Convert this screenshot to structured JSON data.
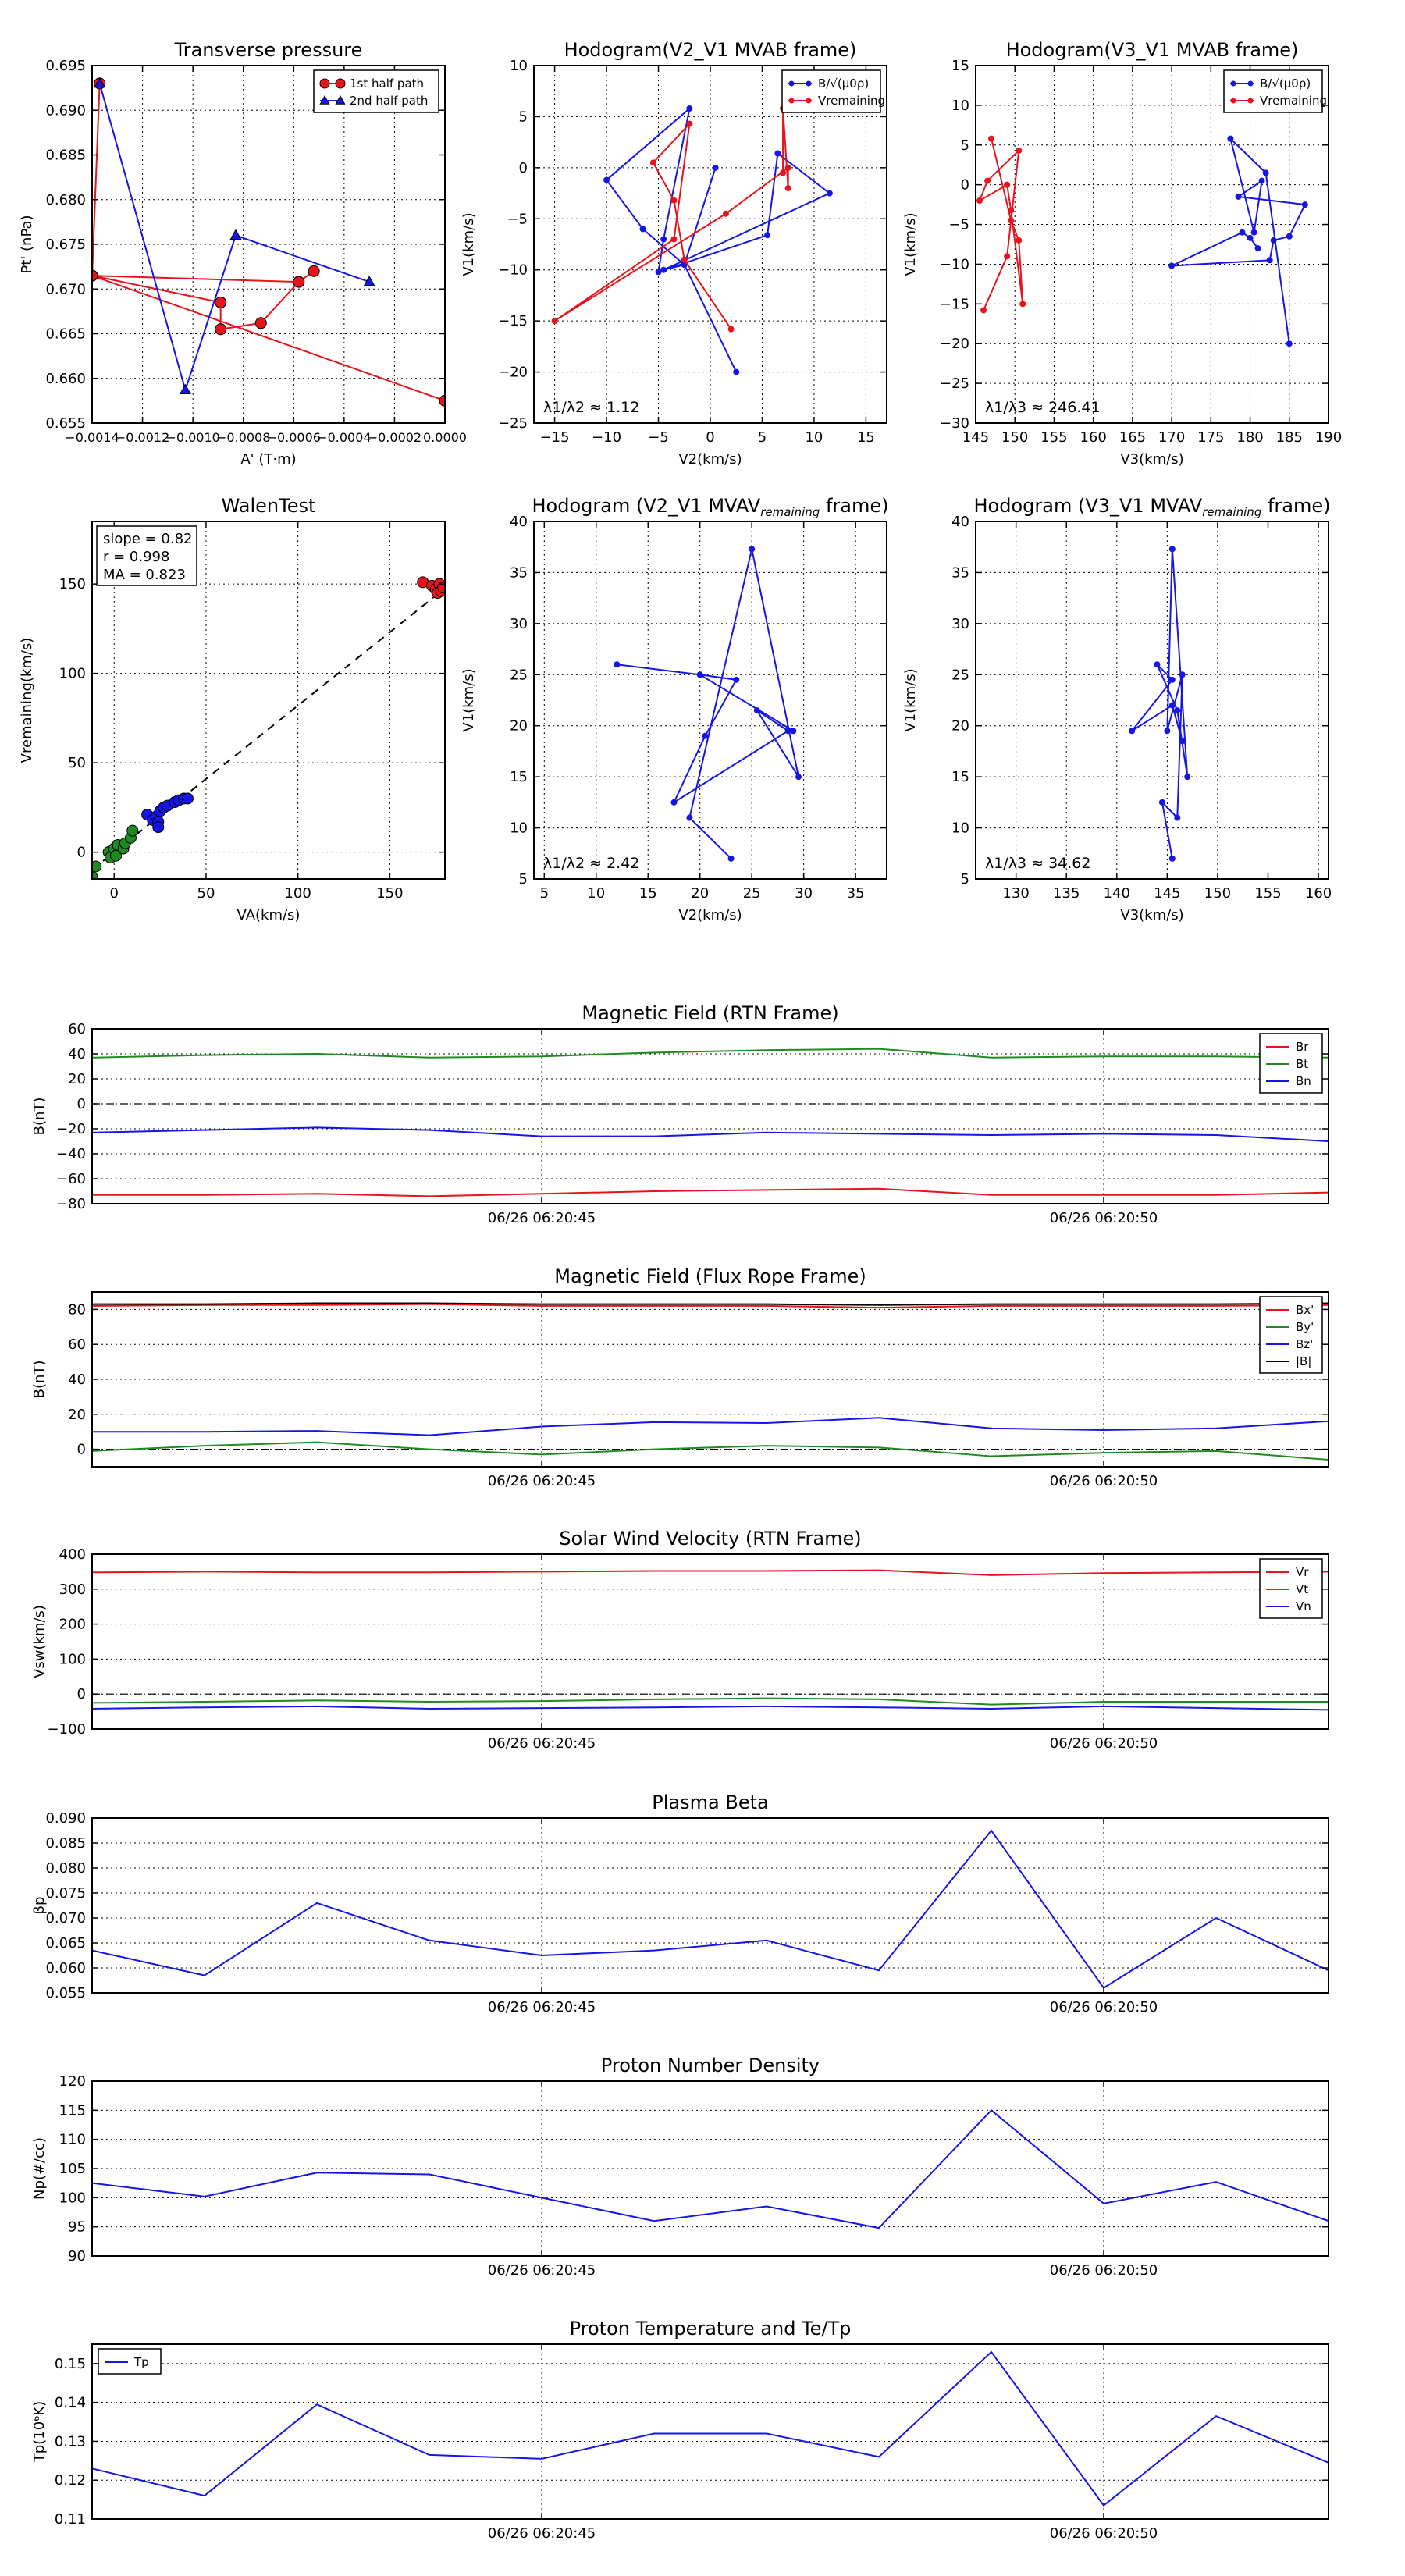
{
  "colors": {
    "red": "#e8141c",
    "green": "#208a20",
    "blue": "#1515e8",
    "black": "#000000"
  },
  "chart_data": [
    {
      "id": "transverse-pressure",
      "type": "scatter",
      "title": "Transverse pressure",
      "xlabel": "A' (T·m)",
      "ylabel": "Pt' (nPa)",
      "xlim": [
        -0.0014,
        0.0
      ],
      "ylim": [
        0.655,
        0.695
      ],
      "xticks": [
        -0.0014,
        -0.0012,
        -0.001,
        -0.0008,
        -0.0006,
        -0.0004,
        -0.0002,
        0.0
      ],
      "xtick_labels": [
        "−0.0014",
        "−0.0012",
        "−0.0010",
        "−0.0008",
        "−0.0006",
        "−0.0004",
        "−0.0002",
        "0.0000"
      ],
      "yticks": [
        0.655,
        0.66,
        0.665,
        0.67,
        0.675,
        0.68,
        0.685,
        0.69,
        0.695
      ],
      "ytick_labels": [
        "0.655",
        "0.660",
        "0.665",
        "0.670",
        "0.675",
        "0.680",
        "0.685",
        "0.690",
        "0.695"
      ],
      "legend": {
        "position": "top-right",
        "entries": [
          "1st half path",
          "2nd half path"
        ]
      },
      "series": [
        {
          "name": "1st half path",
          "color": "#e8141c",
          "marker": "circle",
          "x": [
            0.0,
            -0.0014,
            -0.00089,
            -0.00089,
            -0.00073,
            -0.00058,
            -0.00052,
            -0.00058,
            -0.0014,
            -0.00137
          ],
          "y": [
            0.6575,
            0.6715,
            0.6685,
            0.6655,
            0.6662,
            0.6708,
            0.672,
            0.6708,
            0.6715,
            0.693
          ]
        },
        {
          "name": "2nd half path",
          "color": "#1515e8",
          "marker": "triangle",
          "x": [
            -0.00137,
            -0.00103,
            -0.00083,
            -0.0003
          ],
          "y": [
            0.693,
            0.6587,
            0.676,
            0.6708
          ]
        }
      ]
    },
    {
      "id": "hodogram-v2v1-mvab",
      "type": "line",
      "title": "Hodogram(V2_V1 MVAB frame)",
      "xlabel": "V2(km/s)",
      "ylabel": "V1(km/s)",
      "xlim": [
        -17,
        17
      ],
      "ylim": [
        -25,
        10
      ],
      "xticks": [
        -15,
        -10,
        -5,
        0,
        5,
        10,
        15
      ],
      "yticks": [
        -25,
        -20,
        -15,
        -10,
        -5,
        0,
        5,
        10
      ],
      "annotation": "λ1/λ2 ≈ 1.12",
      "legend": {
        "position": "top-right",
        "entries": [
          "B/√(μ0ρ)",
          "Vremaining"
        ]
      },
      "series": [
        {
          "name": "B/√(μ0ρ)",
          "color": "#1515e8",
          "x": [
            2.5,
            -2.5,
            -6.5,
            -10.0,
            -2.0,
            -4.5,
            -5.0,
            5.5,
            6.5,
            11.5,
            -4.5,
            -2.5,
            0.5
          ],
          "y": [
            -20.0,
            -9.5,
            -6.0,
            -1.2,
            5.8,
            -7.0,
            -10.2,
            -6.6,
            1.4,
            -2.5,
            -10.0,
            -9.5,
            0.0
          ]
        },
        {
          "name": "Vremaining",
          "color": "#e8141c",
          "x": [
            2.0,
            -2.5,
            -3.5,
            -5.5,
            -2.0,
            -3.5,
            -15.0,
            1.5,
            7.5,
            7.5,
            7.0,
            7.0
          ],
          "y": [
            -15.8,
            -9.0,
            -3.2,
            0.5,
            4.3,
            -7.0,
            -15.0,
            -4.5,
            0.0,
            -2.0,
            5.8,
            -0.5
          ]
        }
      ]
    },
    {
      "id": "hodogram-v3v1-mvab",
      "type": "line",
      "title": "Hodogram(V3_V1 MVAB frame)",
      "xlabel": "V3(km/s)",
      "ylabel": "V1(km/s)",
      "xlim": [
        145,
        190
      ],
      "ylim": [
        -30,
        15
      ],
      "xticks": [
        145,
        150,
        155,
        160,
        165,
        170,
        175,
        180,
        185,
        190
      ],
      "yticks": [
        -30,
        -25,
        -20,
        -15,
        -10,
        -5,
        0,
        5,
        10,
        15
      ],
      "annotation": "λ1/λ3 ≈ 246.41",
      "legend": {
        "position": "top-right",
        "entries": [
          "B/√(μ0ρ)",
          "Vremaining"
        ]
      },
      "series": [
        {
          "name": "B/√(μ0ρ)",
          "color": "#1515e8",
          "x": [
            185.0,
            182.0,
            177.5,
            180.5,
            181.5,
            178.5,
            187.0,
            185.0,
            183.0,
            182.5,
            170.0,
            179.0,
            180.0,
            181.0
          ],
          "y": [
            -20.0,
            1.5,
            5.8,
            -6.0,
            0.5,
            -1.5,
            -2.5,
            -6.5,
            -7.0,
            -9.5,
            -10.2,
            -6.0,
            -6.7,
            -8.0
          ]
        },
        {
          "name": "Vremaining",
          "color": "#e8141c",
          "x": [
            146.0,
            149.0,
            150.5,
            146.5,
            145.5,
            149.0,
            149.5,
            151.0,
            150.5,
            149.5,
            147.0
          ],
          "y": [
            -15.8,
            -9.0,
            4.3,
            0.5,
            -2.0,
            0.0,
            -3.2,
            -15.0,
            -7.0,
            -4.5,
            5.8
          ]
        }
      ]
    },
    {
      "id": "walen-test",
      "type": "scatter",
      "title": "WalenTest",
      "xlabel": "VA(km/s)",
      "ylabel": "Vremaining(km/s)",
      "xlim": [
        -12,
        180
      ],
      "ylim": [
        -15,
        185
      ],
      "xticks": [
        0,
        50,
        100,
        150
      ],
      "yticks": [
        0,
        50,
        100,
        150
      ],
      "stats": {
        "slope": "slope = 0.82",
        "r": "r = 0.998",
        "ma": "MA = 0.823"
      },
      "fit_line": {
        "slope": 0.82,
        "x": [
          -12,
          180
        ]
      },
      "series": [
        {
          "name": "green",
          "color": "#208a20",
          "x": [
            -10,
            -3,
            -2,
            0,
            1,
            2,
            5,
            6,
            9,
            10,
            -12
          ],
          "y": [
            -8,
            0,
            -3,
            2,
            -2,
            4,
            2,
            5,
            8,
            12,
            -14
          ]
        },
        {
          "name": "blue",
          "color": "#1515e8",
          "x": [
            18,
            21,
            23,
            24,
            25,
            27,
            29,
            33,
            35,
            38,
            40,
            24
          ],
          "y": [
            21,
            18,
            20,
            17,
            23,
            25,
            26,
            28,
            29,
            30,
            30,
            14
          ]
        },
        {
          "name": "red",
          "color": "#e8141c",
          "x": [
            168,
            173,
            175,
            176,
            177,
            178,
            179
          ],
          "y": [
            151,
            149,
            147,
            145,
            150,
            146,
            148
          ]
        }
      ]
    },
    {
      "id": "hodogram-v2v1-mvav",
      "type": "line",
      "title": "Hodogram (V2_V1 MVAV",
      "title_sub": "remaining",
      "title_end": " frame)",
      "xlabel": "V2(km/s)",
      "ylabel": "V1(km/s)",
      "xlim": [
        4,
        38
      ],
      "ylim": [
        5,
        40
      ],
      "xticks": [
        5,
        10,
        15,
        20,
        25,
        30,
        35
      ],
      "yticks": [
        5,
        10,
        15,
        20,
        25,
        30,
        35,
        40
      ],
      "annotation": "λ1/λ2 ≈ 2.42",
      "series": [
        {
          "name": "V",
          "color": "#1515e8",
          "x": [
            23.0,
            19.0,
            25.0,
            29.5,
            25.5,
            28.5,
            17.5,
            20.5,
            23.5,
            20.0,
            12.0,
            20.0,
            29.0
          ],
          "y": [
            7.0,
            11.0,
            37.3,
            15.0,
            21.5,
            19.5,
            12.5,
            19.0,
            24.5,
            25.0,
            26.0,
            25.0,
            19.5
          ]
        }
      ]
    },
    {
      "id": "hodogram-v3v1-mvav",
      "type": "line",
      "title": "Hodogram (V3_V1 MVAV",
      "title_sub": "remaining",
      "title_end": " frame)",
      "xlabel": "V3(km/s)",
      "ylabel": "V1(km/s)",
      "xlim": [
        126,
        161
      ],
      "ylim": [
        5,
        40
      ],
      "xticks": [
        130,
        135,
        140,
        145,
        150,
        155,
        160
      ],
      "yticks": [
        5,
        10,
        15,
        20,
        25,
        30,
        35,
        40
      ],
      "annotation": "λ1/λ3 ≈ 34.62",
      "series": [
        {
          "name": "V",
          "color": "#1515e8",
          "x": [
            145.5,
            144.5,
            146.0,
            146.5,
            145.0,
            145.5,
            147.0,
            146.0,
            144.0,
            145.5,
            141.5,
            145.5,
            146.5
          ],
          "y": [
            7.0,
            12.5,
            11.0,
            25.0,
            19.5,
            37.3,
            15.0,
            21.5,
            26.0,
            24.5,
            19.5,
            22.0,
            18.5
          ]
        }
      ]
    },
    {
      "id": "magnetic-field-rtn",
      "type": "line",
      "title": "Magnetic Field (RTN Frame)",
      "ylabel": "B(nT)",
      "ylim": [
        -80,
        60
      ],
      "yticks": [
        -80,
        -60,
        -40,
        -20,
        0,
        20,
        40,
        60
      ],
      "x": [
        0,
        1,
        2,
        3,
        4,
        5,
        6,
        7,
        8,
        9,
        10,
        11
      ],
      "xlim": [
        0,
        11
      ],
      "time_ticks": [
        {
          "x": 4,
          "label": "06/26 06:20:45"
        },
        {
          "x": 9,
          "label": "06/26 06:20:50"
        }
      ],
      "zero_line": true,
      "legend": {
        "position": "top-right",
        "entries": [
          "Br",
          "Bt",
          "Bn"
        ]
      },
      "series": [
        {
          "name": "Br",
          "color": "#e8141c",
          "values": [
            -73,
            -73,
            -72,
            -74,
            -72,
            -70,
            -69,
            -68,
            -73,
            -73,
            -73,
            -71
          ]
        },
        {
          "name": "Bt",
          "color": "#208a20",
          "values": [
            37,
            39,
            40,
            37,
            38,
            41,
            43,
            44,
            37,
            38,
            38,
            37
          ]
        },
        {
          "name": "Bn",
          "color": "#1515e8",
          "values": [
            -23,
            -21,
            -19,
            -21,
            -26,
            -26,
            -23,
            -24,
            -25,
            -24,
            -25,
            -30
          ]
        }
      ]
    },
    {
      "id": "magnetic-field-flux-rope",
      "type": "line",
      "title": "Magnetic Field (Flux Rope Frame)",
      "ylabel": "B(nT)",
      "ylim": [
        -10,
        90
      ],
      "yticks": [
        0,
        20,
        40,
        60,
        80
      ],
      "x": [
        0,
        1,
        2,
        3,
        4,
        5,
        6,
        7,
        8,
        9,
        10,
        11
      ],
      "xlim": [
        0,
        11
      ],
      "time_ticks": [
        {
          "x": 4,
          "label": "06/26 06:20:45"
        },
        {
          "x": 9,
          "label": "06/26 06:20:50"
        }
      ],
      "zero_line": true,
      "legend": {
        "position": "top-right",
        "entries": [
          "Bx'",
          "By'",
          "Bz'",
          "|B|"
        ]
      },
      "series": [
        {
          "name": "Bx'",
          "color": "#e8141c",
          "values": [
            82,
            82.5,
            82.5,
            83,
            82,
            82,
            82,
            81,
            82,
            82,
            82,
            82.5
          ]
        },
        {
          "name": "By'",
          "color": "#208a20",
          "values": [
            -1,
            2,
            4,
            0,
            -3,
            0,
            2,
            1,
            -4,
            -2,
            -1,
            -6
          ]
        },
        {
          "name": "Bz'",
          "color": "#1515e8",
          "values": [
            10,
            10,
            10.5,
            8,
            13,
            15.5,
            15,
            18,
            12,
            11,
            12,
            16
          ]
        },
        {
          "name": "|B|",
          "color": "#000000",
          "values": [
            83,
            83,
            83.5,
            83.5,
            83,
            83,
            83,
            82.5,
            83,
            83,
            83,
            83.5
          ]
        }
      ]
    },
    {
      "id": "solar-wind-velocity",
      "type": "line",
      "title": "Solar Wind Velocity (RTN Frame)",
      "ylabel": "Vsw(km/s)",
      "ylim": [
        -100,
        400
      ],
      "yticks": [
        -100,
        0,
        100,
        200,
        300,
        400
      ],
      "x": [
        0,
        1,
        2,
        3,
        4,
        5,
        6,
        7,
        8,
        9,
        10,
        11
      ],
      "xlim": [
        0,
        11
      ],
      "time_ticks": [
        {
          "x": 4,
          "label": "06/26 06:20:45"
        },
        {
          "x": 9,
          "label": "06/26 06:20:50"
        }
      ],
      "zero_line": true,
      "legend": {
        "position": "top-right",
        "entries": [
          "Vr",
          "Vt",
          "Vn"
        ]
      },
      "series": [
        {
          "name": "Vr",
          "color": "#e8141c",
          "values": [
            348,
            350,
            348,
            348,
            350,
            352,
            352,
            354,
            340,
            346,
            348,
            350
          ]
        },
        {
          "name": "Vt",
          "color": "#208a20",
          "values": [
            -25,
            -22,
            -18,
            -22,
            -20,
            -15,
            -12,
            -15,
            -30,
            -22,
            -22,
            -22
          ]
        },
        {
          "name": "Vn",
          "color": "#1515e8",
          "values": [
            -42,
            -38,
            -35,
            -42,
            -40,
            -38,
            -35,
            -38,
            -42,
            -35,
            -40,
            -45
          ]
        }
      ]
    },
    {
      "id": "plasma-beta",
      "type": "line",
      "title": "Plasma Beta",
      "ylabel": "βp",
      "ylim": [
        0.055,
        0.09
      ],
      "yticks": [
        0.055,
        0.06,
        0.065,
        0.07,
        0.075,
        0.08,
        0.085,
        0.09
      ],
      "ytick_labels": [
        "0.055",
        "0.060",
        "0.065",
        "0.070",
        "0.075",
        "0.080",
        "0.085",
        "0.090"
      ],
      "x": [
        0,
        1,
        2,
        3,
        4,
        5,
        6,
        7,
        8,
        9,
        10,
        11
      ],
      "xlim": [
        0,
        11
      ],
      "time_ticks": [
        {
          "x": 4,
          "label": "06/26 06:20:45"
        },
        {
          "x": 9,
          "label": "06/26 06:20:50"
        }
      ],
      "series": [
        {
          "name": "beta",
          "color": "#1515e8",
          "values": [
            0.0635,
            0.0585,
            0.073,
            0.0655,
            0.0625,
            0.0635,
            0.0655,
            0.0595,
            0.0875,
            0.056,
            0.07,
            0.0595
          ]
        }
      ]
    },
    {
      "id": "proton-number-density",
      "type": "line",
      "title": "Proton Number Density",
      "ylabel": "Np(#/cc)",
      "ylim": [
        90,
        120
      ],
      "yticks": [
        90,
        95,
        100,
        105,
        110,
        115,
        120
      ],
      "x": [
        0,
        1,
        2,
        3,
        4,
        5,
        6,
        7,
        8,
        9,
        10,
        11
      ],
      "xlim": [
        0,
        11
      ],
      "time_ticks": [
        {
          "x": 4,
          "label": "06/26 06:20:45"
        },
        {
          "x": 9,
          "label": "06/26 06:20:50"
        }
      ],
      "series": [
        {
          "name": "Np",
          "color": "#1515e8",
          "values": [
            102.5,
            100.2,
            104.3,
            104.0,
            100.0,
            96.0,
            98.5,
            94.8,
            115.0,
            99.0,
            102.7,
            96.0
          ]
        }
      ]
    },
    {
      "id": "proton-temperature",
      "type": "line",
      "title": "Proton Temperature and Te/Tp",
      "ylabel": "Tp(10⁶K)",
      "ylim": [
        0.11,
        0.155
      ],
      "yticks": [
        0.11,
        0.12,
        0.13,
        0.14,
        0.15
      ],
      "ytick_labels": [
        "0.11",
        "0.12",
        "0.13",
        "0.14",
        "0.15"
      ],
      "x": [
        0,
        1,
        2,
        3,
        4,
        5,
        6,
        7,
        8,
        9,
        10,
        11
      ],
      "xlim": [
        0,
        11
      ],
      "time_ticks": [
        {
          "x": 4,
          "label": "06/26 06:20:45"
        },
        {
          "x": 9,
          "label": "06/26 06:20:50"
        }
      ],
      "legend": {
        "position": "top-left",
        "entries": [
          "Tp"
        ]
      },
      "series": [
        {
          "name": "Tp",
          "color": "#1515e8",
          "values": [
            0.123,
            0.116,
            0.1395,
            0.1265,
            0.1255,
            0.132,
            0.132,
            0.126,
            0.153,
            0.1135,
            0.1365,
            0.1245
          ]
        }
      ]
    }
  ]
}
